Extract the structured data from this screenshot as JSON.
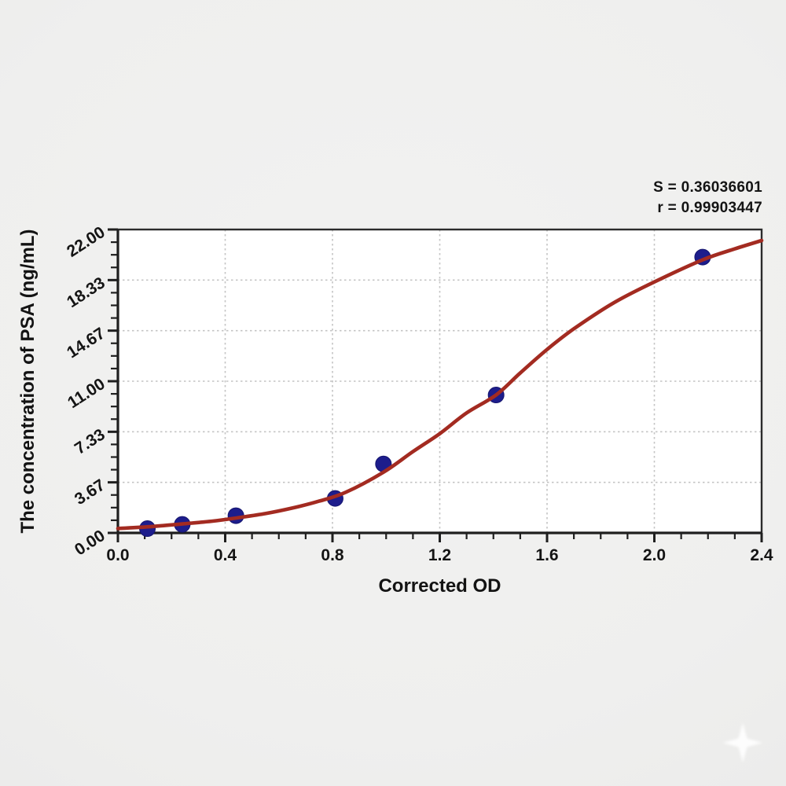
{
  "figure": {
    "annotation": {
      "line1": "S = 0.36036601",
      "line2": "r = 0.99903447"
    }
  },
  "chart_data": {
    "type": "scatter",
    "title": "",
    "xlabel": "Corrected OD",
    "ylabel": "The concentration of PSA (ng/mL)",
    "xlim": [
      0,
      2.4
    ],
    "ylim": [
      0,
      22
    ],
    "grid": "dotted, at major ticks only",
    "legend_position": "none",
    "x_axis": {
      "major_tick_values": [
        0,
        0.4,
        0.8,
        1.2,
        1.6,
        2.0,
        2.4
      ],
      "major_tick_labels": [
        "0.0",
        "0.4",
        "0.8",
        "1.2",
        "1.6",
        "2.0",
        "2.4"
      ],
      "minor_divisions": 4
    },
    "y_axis": {
      "major_tick_values": [
        0,
        3.667,
        7.333,
        11,
        14.667,
        18.333,
        22
      ],
      "major_tick_labels": [
        "0.00",
        "3.67",
        "7.33",
        "11.00",
        "14.67",
        "18.33",
        "22.00"
      ],
      "minor_divisions": 4
    },
    "points": [
      {
        "x": 0.11,
        "y": 0.31
      },
      {
        "x": 0.24,
        "y": 0.62
      },
      {
        "x": 0.44,
        "y": 1.25
      },
      {
        "x": 0.81,
        "y": 2.5
      },
      {
        "x": 0.99,
        "y": 5.0
      },
      {
        "x": 1.41,
        "y": 10.0
      },
      {
        "x": 2.18,
        "y": 20.0
      }
    ],
    "fit_curve": {
      "type": "4PL sigmoid standard curve",
      "samples": [
        [
          0,
          0.32
        ],
        [
          0.12,
          0.45
        ],
        [
          0.24,
          0.65
        ],
        [
          0.35,
          0.85
        ],
        [
          0.44,
          1.08
        ],
        [
          0.55,
          1.4
        ],
        [
          0.65,
          1.8
        ],
        [
          0.75,
          2.3
        ],
        [
          0.85,
          2.95
        ],
        [
          0.99,
          4.4
        ],
        [
          1.1,
          5.9
        ],
        [
          1.2,
          7.2
        ],
        [
          1.3,
          8.7
        ],
        [
          1.41,
          10.0
        ],
        [
          1.5,
          11.6
        ],
        [
          1.6,
          13.3
        ],
        [
          1.7,
          14.8
        ],
        [
          1.85,
          16.7
        ],
        [
          2.0,
          18.2
        ],
        [
          2.18,
          19.8
        ],
        [
          2.3,
          20.6
        ],
        [
          2.4,
          21.2
        ]
      ]
    },
    "stats": {
      "S": 0.36036601,
      "r": 0.99903447
    },
    "colors": {
      "curve": "#a32b21",
      "points": "#1d1d8c",
      "point_edge": "#15156e",
      "axis": "#1f1f1f",
      "frame": "#2b2b2b",
      "grid": "#c4c4c4",
      "plot_background": "#ffffff",
      "text": "#141414"
    }
  }
}
